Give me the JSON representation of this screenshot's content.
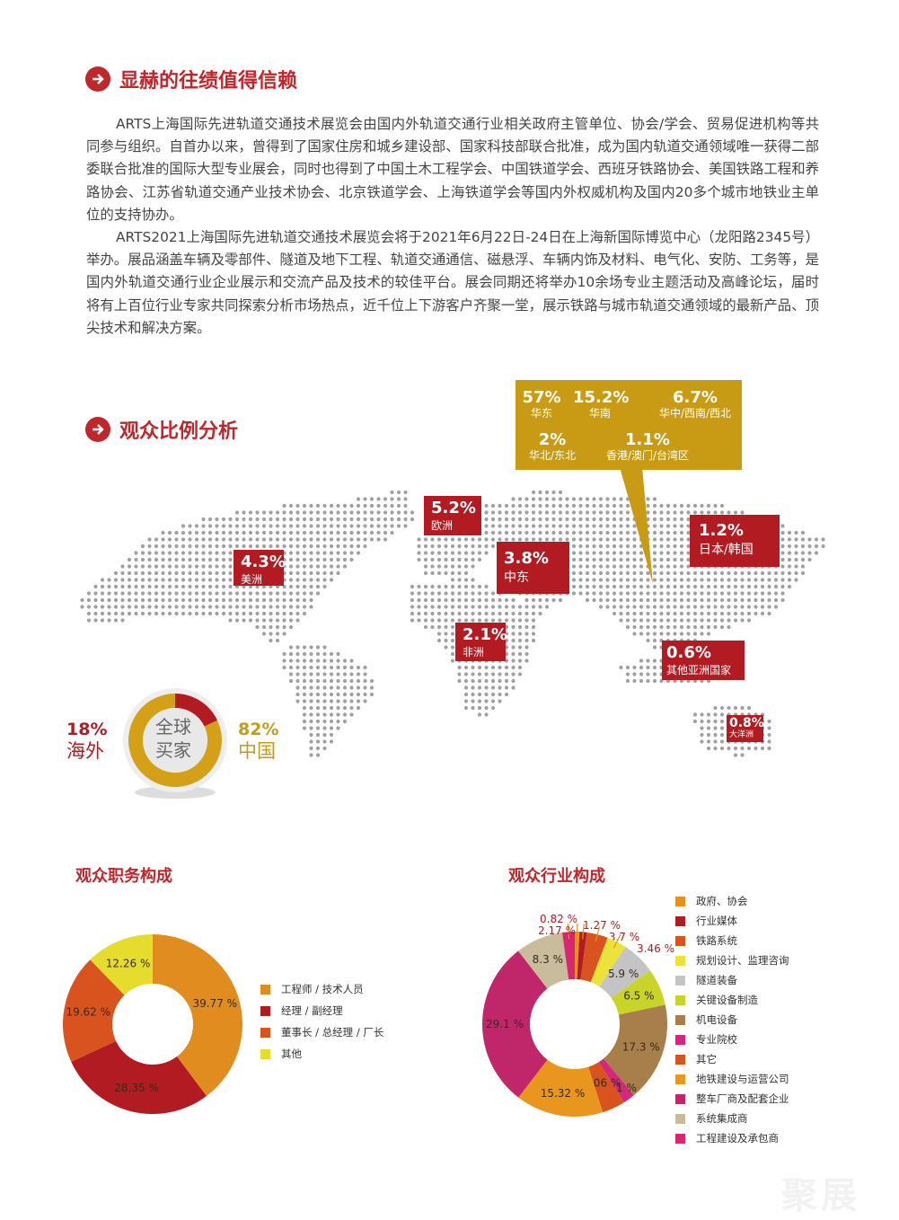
{
  "section1": {
    "title": "显赫的往绩值得信赖",
    "paragraphs": [
      "ARTS上海国际先进轨道交通技术展览会由国内外轨道交通行业相关政府主管单位、协会/学会、贸易促进机构等共同参与组织。自首办以来，曾得到了国家住房和城乡建设部、国家科技部联合批准，成为国内轨道交通领域唯一获得二部委联合批准的国际大型专业展会，同时也得到了中国土木工程学会、中国铁道学会、西班牙铁路协会、美国铁路工程和养路协会、江苏省轨道交通产业技术协会、北京铁道学会、上海铁道学会等国内外权威机构及国内20多个城市地铁业主单位的支持协办。",
      "ARTS2021上海国际先进轨道交通技术展览会将于2021年6月22日-24日在上海新国际博览中心（龙阳路2345号）举办。展品涵盖车辆及零部件、隧道及地下工程、轨道交通通信、磁悬浮、车辆内饰及材料、电气化、安防、工务等，是国内外轨道交通行业企业展示和交流产品及技术的较佳平台。展会同期还将举办10余场专业主题活动及高峰论坛，届时将有上百位行业专家共同探索分析市场热点，近千位上下游客户齐聚一堂，展示铁路与城市轨道交通领域的最新产品、顶尖技术和解决方案。"
    ]
  },
  "section2": {
    "title": "观众比例分析",
    "china_regions": [
      {
        "value": "57%",
        "label": "华东"
      },
      {
        "value": "15.2%",
        "label": "华南"
      },
      {
        "value": "6.7%",
        "label": "华中/西南/西北"
      },
      {
        "value": "2%",
        "label": "华北/东北"
      },
      {
        "value": "1.1%",
        "label": "香港/澳门/台湾区"
      }
    ],
    "world_regions": [
      {
        "value": "4.3%",
        "label": "美洲"
      },
      {
        "value": "5.2%",
        "label": "欧洲"
      },
      {
        "value": "3.8%",
        "label": "中东"
      },
      {
        "value": "2.1%",
        "label": "非洲"
      },
      {
        "value": "1.2%",
        "label": "日本/韩国"
      },
      {
        "value": "0.6%",
        "label": "其他亚洲国家"
      },
      {
        "value": "0.8%",
        "label": "大洋洲"
      }
    ],
    "buyers": {
      "center_line1": "全球",
      "center_line2": "买家",
      "overseas_value": "18%",
      "overseas_label": "海外",
      "china_value": "82%",
      "china_label": "中国"
    }
  },
  "colors": {
    "red": "#b31b22",
    "gold": "#c99b14",
    "title_red": "#c0272d"
  },
  "chart_data": [
    {
      "type": "pie",
      "title": "全球买家",
      "categories": [
        "海外",
        "中国"
      ],
      "values": [
        18,
        82
      ],
      "colors": [
        "#b31b22",
        "#d4a017"
      ]
    },
    {
      "type": "pie",
      "title": "观众职务构成",
      "categories": [
        "工程师 / 技术人员",
        "经理 / 副经理",
        "董事长 / 总经理 / 厂长",
        "其他"
      ],
      "values": [
        39.77,
        28.35,
        19.62,
        12.26
      ],
      "labels": [
        "39.77 %",
        "28.35 %",
        "19.62 %",
        "12.26 %"
      ],
      "colors": [
        "#e08c1e",
        "#b31b22",
        "#d9531e",
        "#e6dc2e"
      ],
      "legend": "right"
    },
    {
      "type": "pie",
      "title": "观众行业构成",
      "categories": [
        "政府、协会",
        "行业媒体",
        "铁路系统",
        "规划设计、监理咨询",
        "隧道装备",
        "关键设备制造",
        "机电设备",
        "专业院校",
        "其它",
        "地铁建设与运营公司",
        "整车厂商及配套企业",
        "系统集成商",
        "工程建设及承包商"
      ],
      "values": [
        0.82,
        1.27,
        3.7,
        3.46,
        5.9,
        6.5,
        17.3,
        2.1,
        4.06,
        15.32,
        29.1,
        8.3,
        2.17
      ],
      "labels": [
        "0.82 %",
        "1.27 %",
        "3.7 %",
        "3.46 %",
        "5.9 %",
        "6.5 %",
        "17.3 %",
        "2.1 %",
        "4.06 %",
        "15.32 %",
        "29.1 %",
        "8.3 %",
        "2.17 %"
      ],
      "colors": [
        "#e8901e",
        "#b31b22",
        "#d9531e",
        "#ece33a",
        "#c4c4c4",
        "#c9d42a",
        "#a87f4a",
        "#d6287a",
        "#d9531e",
        "#e8961e",
        "#c0276a",
        "#c9bc9c",
        "#d6286e"
      ],
      "legend": "right"
    }
  ],
  "watermark": "聚展"
}
